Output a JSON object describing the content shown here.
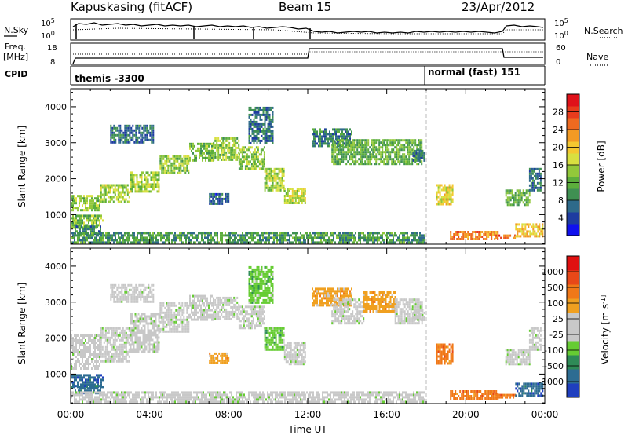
{
  "header": {
    "station": "Kapuskasing (fitACF)",
    "beam": "Beam 15",
    "date": "23/Apr/2012"
  },
  "status_panel": {
    "left_labels": [
      "N.Sky",
      "Freq.",
      "[MHz]",
      "CPID"
    ],
    "right_labels": [
      "N.Search",
      "Nave"
    ],
    "nsky_ticks": [
      "10^5",
      "10^0"
    ],
    "nsearch_ticks": [
      "10^5",
      "10^0"
    ],
    "freq_ticks": [
      "18",
      "8"
    ],
    "nave_ticks": [
      "60",
      "0"
    ],
    "cpid_segments": [
      {
        "label": "themis -3300",
        "start_hour": 0,
        "end_hour": 18
      },
      {
        "label": "normal (fast) 151",
        "start_hour": 18,
        "end_hour": 24
      }
    ]
  },
  "chart_data": [
    {
      "type": "heatmap",
      "name": "power",
      "ylabel": "Slant Range [km]",
      "xlabel": "",
      "xlim": [
        0,
        24
      ],
      "ylim": [
        180,
        4500
      ],
      "y_ticks": [
        1000,
        2000,
        3000,
        4000
      ],
      "colorbar": {
        "label": "Power [dB]",
        "ticks": [
          "4",
          "8",
          "12",
          "16",
          "20",
          "24",
          "28"
        ],
        "colors": [
          "#1010ee",
          "#1e3ca0",
          "#2e6a8a",
          "#3f9052",
          "#5cae3c",
          "#92c83a",
          "#d8e040",
          "#f4c830",
          "#f29a24",
          "#ee6a20",
          "#e83c1c",
          "#e0121a"
        ]
      },
      "regions": [
        {
          "t": [
            0.0,
            1.6
          ],
          "r": [
            650,
            1000
          ],
          "v": 13
        },
        {
          "t": [
            0.2,
            1.5
          ],
          "r": [
            500,
            700
          ],
          "v": 8
        },
        {
          "t": [
            0.0,
            1.5
          ],
          "r": [
            1150,
            1550
          ],
          "v": 14
        },
        {
          "t": [
            1.5,
            3.0
          ],
          "r": [
            1350,
            1850
          ],
          "v": 15
        },
        {
          "t": [
            3.0,
            4.5
          ],
          "r": [
            1650,
            2200
          ],
          "v": 15
        },
        {
          "t": [
            4.5,
            6.0
          ],
          "r": [
            2150,
            2650
          ],
          "v": 14
        },
        {
          "t": [
            6.0,
            7.2
          ],
          "r": [
            2500,
            3000
          ],
          "v": 13
        },
        {
          "t": [
            7.2,
            8.5
          ],
          "r": [
            2550,
            3150
          ],
          "v": 14
        },
        {
          "t": [
            8.5,
            9.8
          ],
          "r": [
            2250,
            2900
          ],
          "v": 14
        },
        {
          "t": [
            9.8,
            10.8
          ],
          "r": [
            1700,
            2300
          ],
          "v": 15
        },
        {
          "t": [
            10.8,
            11.9
          ],
          "r": [
            1300,
            1750
          ],
          "v": 17
        },
        {
          "t": [
            2.0,
            4.2
          ],
          "r": [
            3000,
            3500
          ],
          "v": 7
        },
        {
          "t": [
            9.0,
            10.2
          ],
          "r": [
            3000,
            4000
          ],
          "v": 7
        },
        {
          "t": [
            7.0,
            8.0
          ],
          "r": [
            1300,
            1600
          ],
          "v": 6
        },
        {
          "t": [
            12.2,
            14.2
          ],
          "r": [
            2900,
            3400
          ],
          "v": 8
        },
        {
          "t": [
            13.2,
            17.8
          ],
          "r": [
            2400,
            3100
          ],
          "v": 12
        },
        {
          "t": [
            17.3,
            17.9
          ],
          "r": [
            2500,
            2800
          ],
          "v": 8
        },
        {
          "t": [
            18.5,
            19.3
          ],
          "r": [
            1300,
            1850
          ],
          "v": 18
        },
        {
          "t": [
            19.2,
            21.6
          ],
          "r": [
            320,
            550
          ],
          "v": 24
        },
        {
          "t": [
            21.5,
            22.5
          ],
          "r": [
            320,
            450
          ],
          "v": 26
        },
        {
          "t": [
            22.5,
            23.9
          ],
          "r": [
            400,
            760
          ],
          "v": 20
        },
        {
          "t": [
            22.0,
            23.2
          ],
          "r": [
            1300,
            1700
          ],
          "v": 12
        },
        {
          "t": [
            23.2,
            23.8
          ],
          "r": [
            1700,
            2300
          ],
          "v": 7
        },
        {
          "t": [
            0.0,
            17.9
          ],
          "r": [
            200,
            520
          ],
          "v": 10
        }
      ]
    },
    {
      "type": "heatmap",
      "name": "velocity",
      "ylabel": "Slant Range [km]",
      "xlabel": "Time UT",
      "xlim": [
        0,
        24
      ],
      "ylim": [
        180,
        4500
      ],
      "x_ticks": [
        "00:00",
        "04:00",
        "08:00",
        "12:00",
        "16:00",
        "20:00",
        "00:00"
      ],
      "y_ticks": [
        1000,
        2000,
        3000,
        4000
      ],
      "colorbar": {
        "label": "Velocity [m s^-1]",
        "ticks": [
          "1000",
          "500",
          "100",
          "25",
          "-25",
          "-100",
          "-500",
          "-1000"
        ],
        "colors": [
          "#1f3fbf",
          "#2d6c92",
          "#2e8b57",
          "#66cc33",
          "#c8c8c8",
          "#c8c8c8",
          "#f0a020",
          "#f07818",
          "#e84818",
          "#e01010"
        ]
      },
      "regions": [
        {
          "t": [
            0.0,
            1.6
          ],
          "r": [
            650,
            1000
          ],
          "v": 1
        },
        {
          "t": [
            0.2,
            1.5
          ],
          "r": [
            500,
            700
          ],
          "v": 1
        },
        {
          "t": [
            0.0,
            1.5
          ],
          "r": [
            1150,
            2100
          ],
          "v": 4
        },
        {
          "t": [
            1.5,
            3.0
          ],
          "r": [
            1350,
            2300
          ],
          "v": 4
        },
        {
          "t": [
            3.0,
            4.5
          ],
          "r": [
            1650,
            2700
          ],
          "v": 4
        },
        {
          "t": [
            4.5,
            6.0
          ],
          "r": [
            2150,
            3000
          ],
          "v": 4
        },
        {
          "t": [
            6.0,
            7.2
          ],
          "r": [
            2500,
            3200
          ],
          "v": 4
        },
        {
          "t": [
            7.2,
            8.5
          ],
          "r": [
            2550,
            3150
          ],
          "v": 4
        },
        {
          "t": [
            8.5,
            9.8
          ],
          "r": [
            2250,
            2900
          ],
          "v": 4
        },
        {
          "t": [
            9.8,
            10.8
          ],
          "r": [
            1700,
            2300
          ],
          "v": 3
        },
        {
          "t": [
            10.8,
            11.9
          ],
          "r": [
            1300,
            1900
          ],
          "v": 4
        },
        {
          "t": [
            2.0,
            4.2
          ],
          "r": [
            3000,
            3500
          ],
          "v": 4
        },
        {
          "t": [
            9.0,
            10.2
          ],
          "r": [
            3000,
            4000
          ],
          "v": 3
        },
        {
          "t": [
            7.0,
            8.0
          ],
          "r": [
            1300,
            1600
          ],
          "v": 6
        },
        {
          "t": [
            12.2,
            14.2
          ],
          "r": [
            2900,
            3400
          ],
          "v": 6
        },
        {
          "t": [
            13.2,
            14.8
          ],
          "r": [
            2400,
            3100
          ],
          "v": 4
        },
        {
          "t": [
            14.8,
            16.4
          ],
          "r": [
            2750,
            3300
          ],
          "v": 6
        },
        {
          "t": [
            16.4,
            17.8
          ],
          "r": [
            2400,
            3100
          ],
          "v": 4
        },
        {
          "t": [
            17.3,
            17.9
          ],
          "r": [
            2500,
            2800
          ],
          "v": 4
        },
        {
          "t": [
            18.5,
            19.3
          ],
          "r": [
            1300,
            1850
          ],
          "v": 7
        },
        {
          "t": [
            19.2,
            21.6
          ],
          "r": [
            320,
            550
          ],
          "v": 7
        },
        {
          "t": [
            21.5,
            22.5
          ],
          "r": [
            320,
            450
          ],
          "v": 7
        },
        {
          "t": [
            22.5,
            23.9
          ],
          "r": [
            400,
            760
          ],
          "v": 1
        },
        {
          "t": [
            22.0,
            23.2
          ],
          "r": [
            1300,
            1700
          ],
          "v": 4
        },
        {
          "t": [
            23.2,
            23.8
          ],
          "r": [
            1700,
            2300
          ],
          "v": 4
        },
        {
          "t": [
            0.0,
            17.9
          ],
          "r": [
            200,
            520
          ],
          "v": 4
        }
      ]
    }
  ]
}
